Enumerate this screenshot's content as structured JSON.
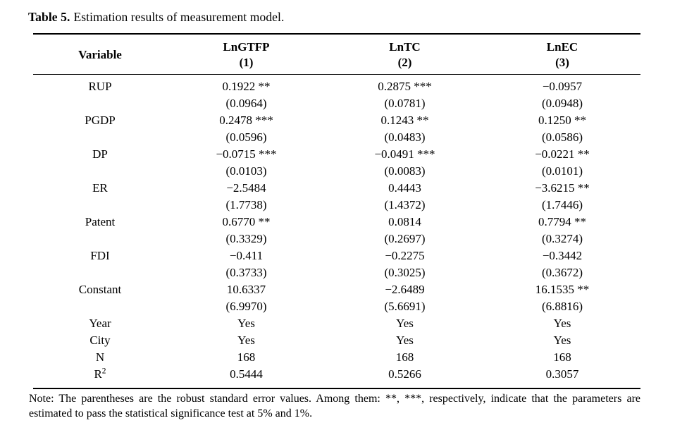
{
  "colors": {
    "background": "#ffffff",
    "text": "#000000",
    "rule": "#000000"
  },
  "title": {
    "label": "Table 5.",
    "text": "Estimation results of measurement model."
  },
  "table": {
    "columns": [
      {
        "name": "Variable",
        "sub": ""
      },
      {
        "name": "LnGTFP",
        "sub": "(1)"
      },
      {
        "name": "LnTC",
        "sub": "(2)"
      },
      {
        "name": "LnEC",
        "sub": "(3)"
      }
    ],
    "rows": [
      {
        "variable": "RUP",
        "values": [
          "0.1922 **",
          "0.2875 ***",
          "−0.0957"
        ],
        "se": [
          "(0.0964)",
          "(0.0781)",
          "(0.0948)"
        ]
      },
      {
        "variable": "PGDP",
        "values": [
          "0.2478 ***",
          "0.1243 **",
          "0.1250 **"
        ],
        "se": [
          "(0.0596)",
          "(0.0483)",
          "(0.0586)"
        ]
      },
      {
        "variable": "DP",
        "values": [
          "−0.0715 ***",
          "−0.0491 ***",
          "−0.0221 **"
        ],
        "se": [
          "(0.0103)",
          "(0.0083)",
          "(0.0101)"
        ]
      },
      {
        "variable": "ER",
        "values": [
          "−2.5484",
          "0.4443",
          "−3.6215 **"
        ],
        "se": [
          "(1.7738)",
          "(1.4372)",
          "(1.7446)"
        ]
      },
      {
        "variable": "Patent",
        "values": [
          "0.6770 **",
          "0.0814",
          "0.7794 **"
        ],
        "se": [
          "(0.3329)",
          "(0.2697)",
          "(0.3274)"
        ]
      },
      {
        "variable": "FDI",
        "values": [
          "−0.411",
          "−0.2275",
          "−0.3442"
        ],
        "se": [
          "(0.3733)",
          "(0.3025)",
          "(0.3672)"
        ]
      },
      {
        "variable": "Constant",
        "values": [
          "10.6337",
          "−2.6489",
          "16.1535 **"
        ],
        "se": [
          "(6.9970)",
          "(5.6691)",
          "(6.8816)"
        ]
      }
    ],
    "summary_rows": [
      {
        "variable": "Year",
        "values": [
          "Yes",
          "Yes",
          "Yes"
        ]
      },
      {
        "variable": "City",
        "values": [
          "Yes",
          "Yes",
          "Yes"
        ]
      },
      {
        "variable": "N",
        "values": [
          "168",
          "168",
          "168"
        ]
      },
      {
        "variable": "R",
        "sup": "2",
        "values": [
          "0.5444",
          "0.5266",
          "0.3057"
        ]
      }
    ]
  },
  "note": "Note: The parentheses are the robust standard error values. Among them: **, ***, respectively, indicate that the parameters are estimated to pass the statistical significance test at 5% and 1%."
}
